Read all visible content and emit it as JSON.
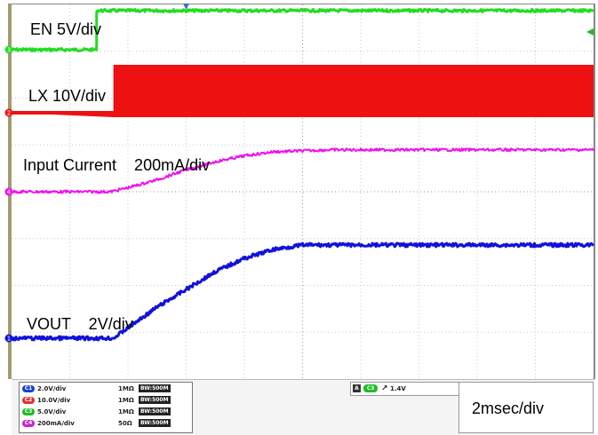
{
  "chart_data": {
    "type": "line",
    "title": "",
    "grid": true,
    "divisions": {
      "horizontal": 10,
      "vertical": 8
    },
    "timebase": "2msec/div",
    "series": [
      {
        "name": "EN 5V/div",
        "color": "#22dd22",
        "marker": "3",
        "points": [
          [
            0.0,
            1.2
          ],
          [
            1.45,
            1.2
          ],
          [
            1.45,
            2.3
          ],
          [
            10.0,
            2.3
          ]
        ]
      },
      {
        "name": "LX 10V/div",
        "color": "#ee1111",
        "marker": "2",
        "points": [
          [
            0.0,
            0.0
          ],
          [
            1.75,
            0.0
          ],
          [
            1.75,
            1.5
          ],
          [
            10.0,
            1.5
          ]
        ]
      },
      {
        "name": "Input Current 200mA/div",
        "color": "#ee11ee",
        "marker": "4",
        "points": [
          [
            0.0,
            0.0
          ],
          [
            1.7,
            0.0
          ],
          [
            2.0,
            0.1
          ],
          [
            2.5,
            0.3
          ],
          [
            3.0,
            0.55
          ],
          [
            3.5,
            0.75
          ],
          [
            4.0,
            0.9
          ],
          [
            4.5,
            1.0
          ],
          [
            5.5,
            1.05
          ],
          [
            10.0,
            1.05
          ]
        ]
      },
      {
        "name": "VOUT 2V/div",
        "color": "#1111dd",
        "marker": "1",
        "points": [
          [
            0.0,
            0.0
          ],
          [
            1.75,
            0.0
          ],
          [
            2.5,
            0.7
          ],
          [
            3.0,
            1.1
          ],
          [
            3.5,
            1.5
          ],
          [
            4.0,
            1.8
          ],
          [
            4.5,
            2.0
          ],
          [
            5.0,
            2.1
          ],
          [
            10.0,
            2.1
          ]
        ]
      }
    ]
  },
  "labels": {
    "en": "EN 5V/div",
    "lx": "LX 10V/div",
    "input_current": "Input Current    200mA/div",
    "vout": "VOUT    2V/div"
  },
  "channels": [
    {
      "chip": "C1",
      "color": "#1a3fd6",
      "scale": "2.0V/div",
      "impedance": "1MΩ",
      "bw": "BW:500M"
    },
    {
      "chip": "C2",
      "color": "#e03030",
      "scale": "10.0V/div",
      "impedance": "1MΩ",
      "bw": "BW:500M"
    },
    {
      "chip": "C3",
      "color": "#22bb22",
      "scale": "5.0V/div",
      "impedance": "1MΩ",
      "bw": "BW:500M"
    },
    {
      "chip": "C4",
      "color": "#cc22cc",
      "scale": "200mA/div",
      "impedance": "50Ω",
      "bw": "BW:500M"
    }
  ],
  "trigger": {
    "mode": "A",
    "channel": "C3",
    "level": "1.4V"
  },
  "timebase_label": "2msec/div"
}
